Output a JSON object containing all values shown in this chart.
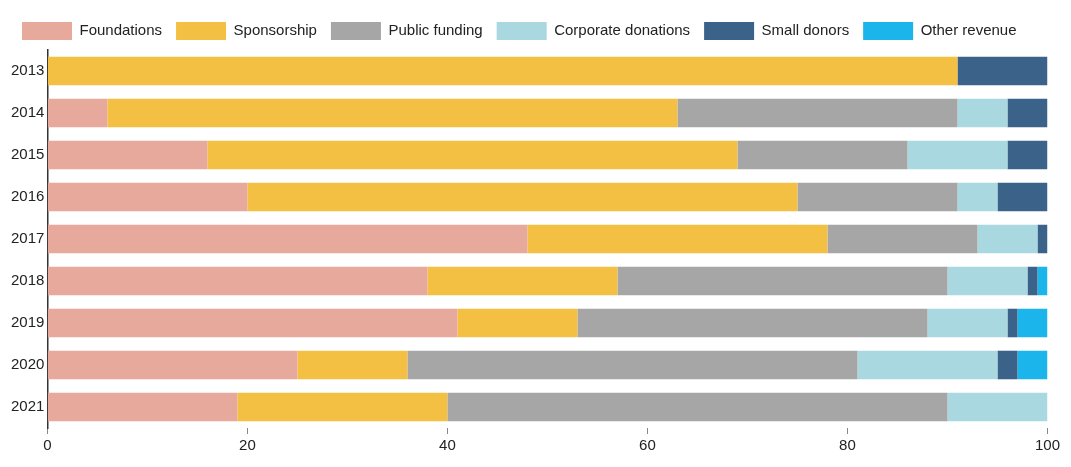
{
  "chart_data": {
    "type": "bar",
    "orientation": "horizontal",
    "stacked": true,
    "categories": [
      "2013",
      "2014",
      "2015",
      "2016",
      "2017",
      "2018",
      "2019",
      "2020",
      "2021"
    ],
    "series": [
      {
        "name": "Foundations",
        "color": "#e8a99d",
        "values": [
          null,
          6,
          16,
          20,
          48,
          38,
          41,
          25,
          19
        ]
      },
      {
        "name": "Sponsorship",
        "color": "#f4c043",
        "values": [
          91,
          57,
          53,
          55,
          30,
          19,
          12,
          11,
          21
        ]
      },
      {
        "name": "Public funding",
        "color": "#a6a6a6",
        "values": [
          null,
          28,
          17,
          16,
          15,
          33,
          35,
          45,
          50
        ]
      },
      {
        "name": "Corporate donations",
        "color": "#a9d8e0",
        "values": [
          null,
          5,
          10,
          4,
          6,
          8,
          8,
          14,
          10
        ]
      },
      {
        "name": "Small donors",
        "color": "#3b638a",
        "values": [
          9,
          4,
          4,
          5,
          1,
          1,
          1,
          2,
          null
        ]
      },
      {
        "name": "Other revenue",
        "color": "#1bb5eb",
        "values": [
          null,
          null,
          null,
          null,
          null,
          1,
          3,
          3,
          null
        ]
      }
    ],
    "xlim": [
      0,
      100
    ],
    "xticks": [
      0,
      20,
      40,
      60,
      80,
      100
    ],
    "grid": false,
    "legend": "top left"
  }
}
